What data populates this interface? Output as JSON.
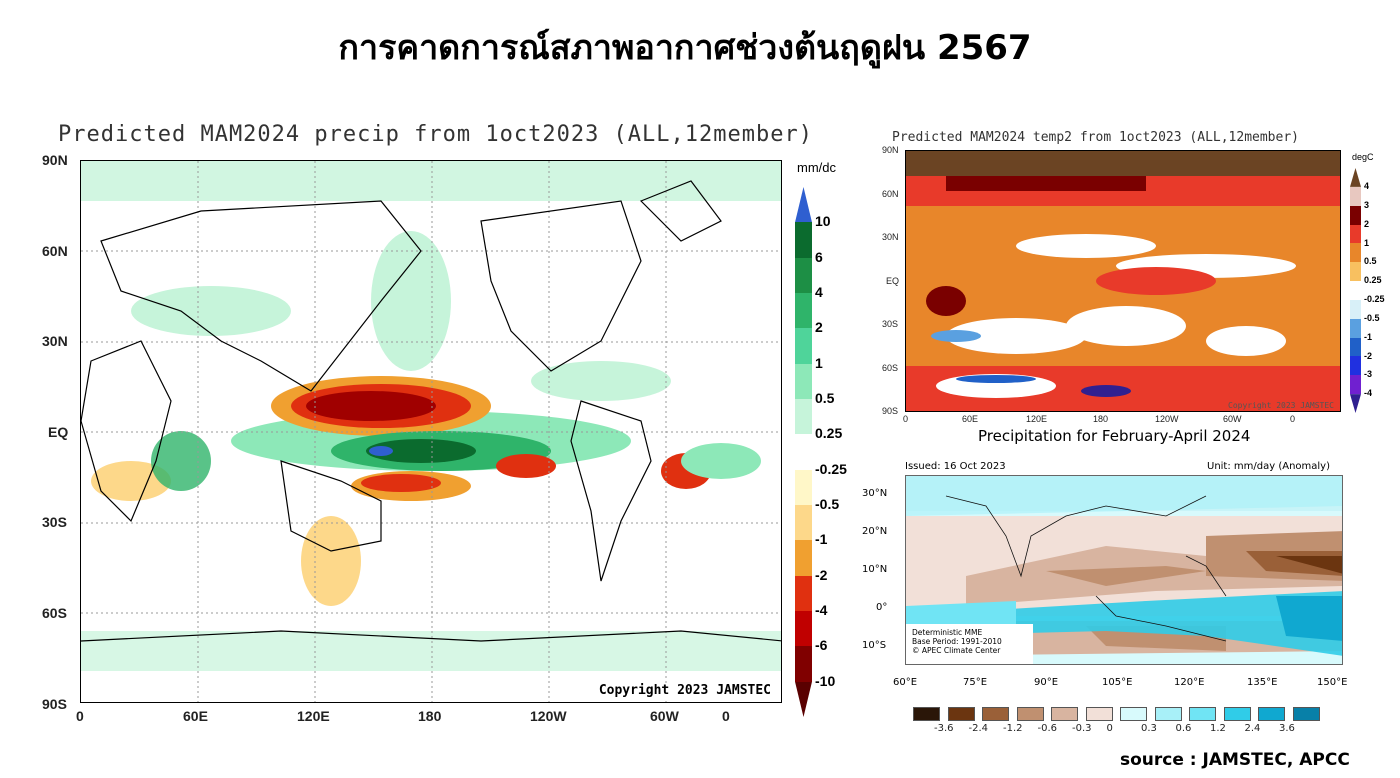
{
  "slide_title": "การคาดการณ์สภาพอากาศช่วงต้นฤดูฝน 2567",
  "left_map": {
    "title": "Predicted MAM2024 precip from 1oct2023 (ALL,12member)",
    "unit": "mm/dc",
    "lat_labels": [
      "90N",
      "60N",
      "30N",
      "EQ",
      "30S",
      "60S",
      "90S"
    ],
    "lon_labels": [
      "0",
      "60E",
      "120E",
      "180",
      "120W",
      "60W",
      "0"
    ],
    "colorbar": {
      "labels": [
        "10",
        "6",
        "4",
        "2",
        "1",
        "0.5",
        "0.25",
        "-0.25",
        "-0.5",
        "-1",
        "-2",
        "-4",
        "-6",
        "-10"
      ],
      "colors": [
        "#2f5fd0",
        "#0b6b2e",
        "#1d8f45",
        "#2fb46a",
        "#4fd49a",
        "#8de8b8",
        "#c6f4da",
        "#ffffff",
        "#fff7c8",
        "#fdd88a",
        "#f0a030",
        "#e03010",
        "#c00000",
        "#800000",
        "#5a0000"
      ]
    },
    "copyright": "Copyright 2023 JAMSTEC"
  },
  "top_right_map": {
    "title": "Predicted MAM2024 temp2 from 1oct2023 (ALL,12member)",
    "unit": "degC",
    "lat_labels": [
      "90N",
      "60N",
      "30N",
      "EQ",
      "30S",
      "60S",
      "90S"
    ],
    "lon_labels": [
      "0",
      "60E",
      "120E",
      "180",
      "120W",
      "60W",
      "0"
    ],
    "colorbar": {
      "labels": [
        "4",
        "3",
        "2",
        "1",
        "0.5",
        "0.25",
        "-0.25",
        "-0.5",
        "-1",
        "-2",
        "-3",
        "-4"
      ],
      "colors": [
        "#6b4423",
        "#e8c8c0",
        "#7a0000",
        "#e83a2a",
        "#e8862a",
        "#f8c060",
        "#ffffff",
        "#d8f0f8",
        "#5aa0e0",
        "#2060c8",
        "#2030e0",
        "#7020d0",
        "#302090"
      ]
    },
    "copyright": "Copyright 2023 JAMSTEC"
  },
  "bottom_right_map": {
    "title": "Precipitation for February-April 2024",
    "issued": "Issued: 16 Oct 2023",
    "unit": "Unit: mm/day (Anomaly)",
    "lat_labels": [
      "30°N",
      "20°N",
      "10°N",
      "0°",
      "10°S"
    ],
    "lon_labels": [
      "60°E",
      "75°E",
      "90°E",
      "105°E",
      "120°E",
      "135°E",
      "150°E"
    ],
    "info": [
      "Deterministic MME",
      "Base Period: 1991-2010",
      "© APEC Climate Center"
    ],
    "legend": {
      "labels": [
        "-3.6",
        "-2.4",
        "-1.2",
        "-0.6",
        "-0.3",
        "0",
        "0.3",
        "0.6",
        "1.2",
        "2.4",
        "3.6"
      ],
      "colors": [
        "#2a1608",
        "#6b3510",
        "#9a6038",
        "#c09070",
        "#d8b4a0",
        "#f2e0d8",
        "#d8fafc",
        "#a8f0f8",
        "#70e4f4",
        "#30cce8",
        "#10a8d0",
        "#0880a8"
      ]
    }
  },
  "source": "source : JAMSTEC, APCC"
}
